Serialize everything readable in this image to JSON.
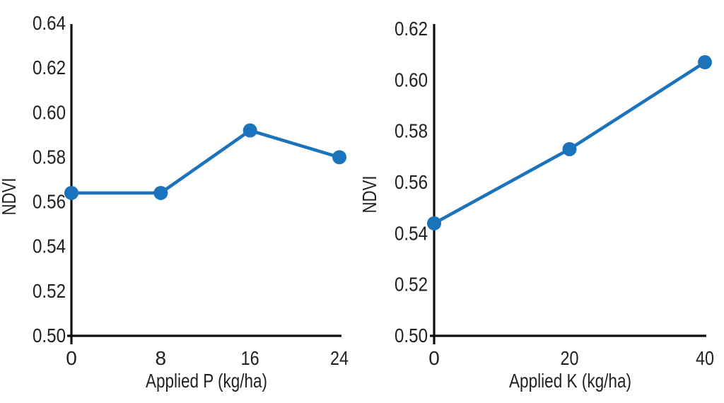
{
  "style": {
    "background": "#ffffff",
    "line_color": "#1b74bb",
    "axis_color": "#0d0d0d",
    "text_color": "#231f20"
  },
  "chart_data": [
    {
      "type": "line",
      "panel": "left",
      "title": "",
      "xlabel": "Applied P (kg/ha)",
      "ylabel": "NDVI",
      "x": [
        0,
        8,
        16,
        24
      ],
      "series": [
        {
          "name": "NDVI",
          "values": [
            0.564,
            0.564,
            0.592,
            0.58
          ]
        }
      ],
      "xlim": [
        0,
        24
      ],
      "ylim": [
        0.5,
        0.64
      ],
      "xtick_labels": [
        "0",
        "8",
        "16",
        "24"
      ],
      "ytick_values": [
        0.5,
        0.52,
        0.54,
        0.56,
        0.58,
        0.6,
        0.62,
        0.64
      ],
      "ytick_labels": [
        "0.50",
        "0.52",
        "0.54",
        "0.56",
        "0.58",
        "0.60",
        "0.62",
        "0.64"
      ],
      "grid": false,
      "legend": "none",
      "marker": "circle"
    },
    {
      "type": "line",
      "panel": "right",
      "title": "",
      "xlabel": "Applied K (kg/ha)",
      "ylabel": "NDVI",
      "x": [
        0,
        20,
        40
      ],
      "series": [
        {
          "name": "NDVI",
          "values": [
            0.544,
            0.573,
            0.607
          ]
        }
      ],
      "xlim": [
        0,
        40
      ],
      "ylim": [
        0.5,
        0.62
      ],
      "xtick_labels": [
        "0",
        "20",
        "40"
      ],
      "ytick_values": [
        0.5,
        0.52,
        0.54,
        0.56,
        0.58,
        0.6,
        0.62
      ],
      "ytick_labels": [
        "0.50",
        "0.52",
        "0.54",
        "0.56",
        "0.58",
        "0.60",
        "0.62"
      ],
      "grid": false,
      "legend": "none",
      "marker": "circle"
    }
  ]
}
